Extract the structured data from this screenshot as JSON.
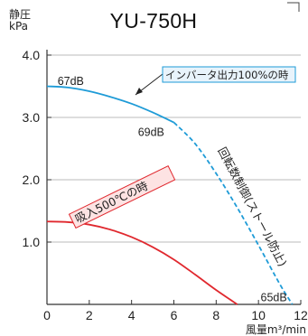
{
  "chart_data": {
    "type": "line",
    "title": "YU-750H",
    "ylabel_line1": "静圧",
    "ylabel_line2": "kPa",
    "xlabel": "風量m³/min",
    "xlim": [
      0,
      12
    ],
    "ylim": [
      0,
      4.0
    ],
    "x_ticks": [
      0,
      2,
      4,
      6,
      8,
      10,
      12
    ],
    "x_tick_labels": [
      "0",
      "2",
      "4",
      "6",
      "8",
      "10",
      "12"
    ],
    "y_ticks": [
      1.0,
      2.0,
      3.0,
      4.0
    ],
    "y_tick_labels": [
      "1.0",
      "2.0",
      "3.0",
      "4.0"
    ],
    "grid": "horizontal",
    "series": [
      {
        "name": "インバータ出力100%の時",
        "color": "#1e9bd7",
        "style": "solid",
        "x": [
          0,
          1,
          2,
          3,
          4,
          5,
          6
        ],
        "y": [
          3.5,
          3.48,
          3.42,
          3.33,
          3.22,
          3.08,
          2.92
        ]
      },
      {
        "name": "回転数制御(ストール防止)",
        "color": "#1e9bd7",
        "style": "dashed",
        "x": [
          6,
          7,
          8,
          9,
          10,
          11,
          11.6
        ],
        "y": [
          2.92,
          2.58,
          2.1,
          1.55,
          0.95,
          0.33,
          0.0
        ]
      },
      {
        "name": "吸入500℃の時",
        "color": "#e0282e",
        "style": "solid",
        "x": [
          0,
          1,
          2,
          3,
          4,
          5,
          6,
          7,
          8,
          9
        ],
        "y": [
          1.33,
          1.32,
          1.28,
          1.2,
          1.08,
          0.92,
          0.72,
          0.48,
          0.23,
          0.0
        ]
      }
    ],
    "annotations": [
      {
        "text": "67dB",
        "x": 0.5,
        "y": 3.52
      },
      {
        "text": "69dB",
        "x": 4.3,
        "y": 2.7
      },
      {
        "text": "65dB",
        "x": 10.1,
        "y": 0.05
      }
    ],
    "boxed_label": "インバータ出力100%の時",
    "red_label": "吸入500℃の時",
    "dashed_label": "回転数制御(ストール防止)"
  },
  "colors": {
    "blue": "#1e9bd7",
    "red": "#e0282e",
    "axis": "#333333",
    "grid": "#bbbbbb",
    "box_fill": "#e8f3fb"
  }
}
